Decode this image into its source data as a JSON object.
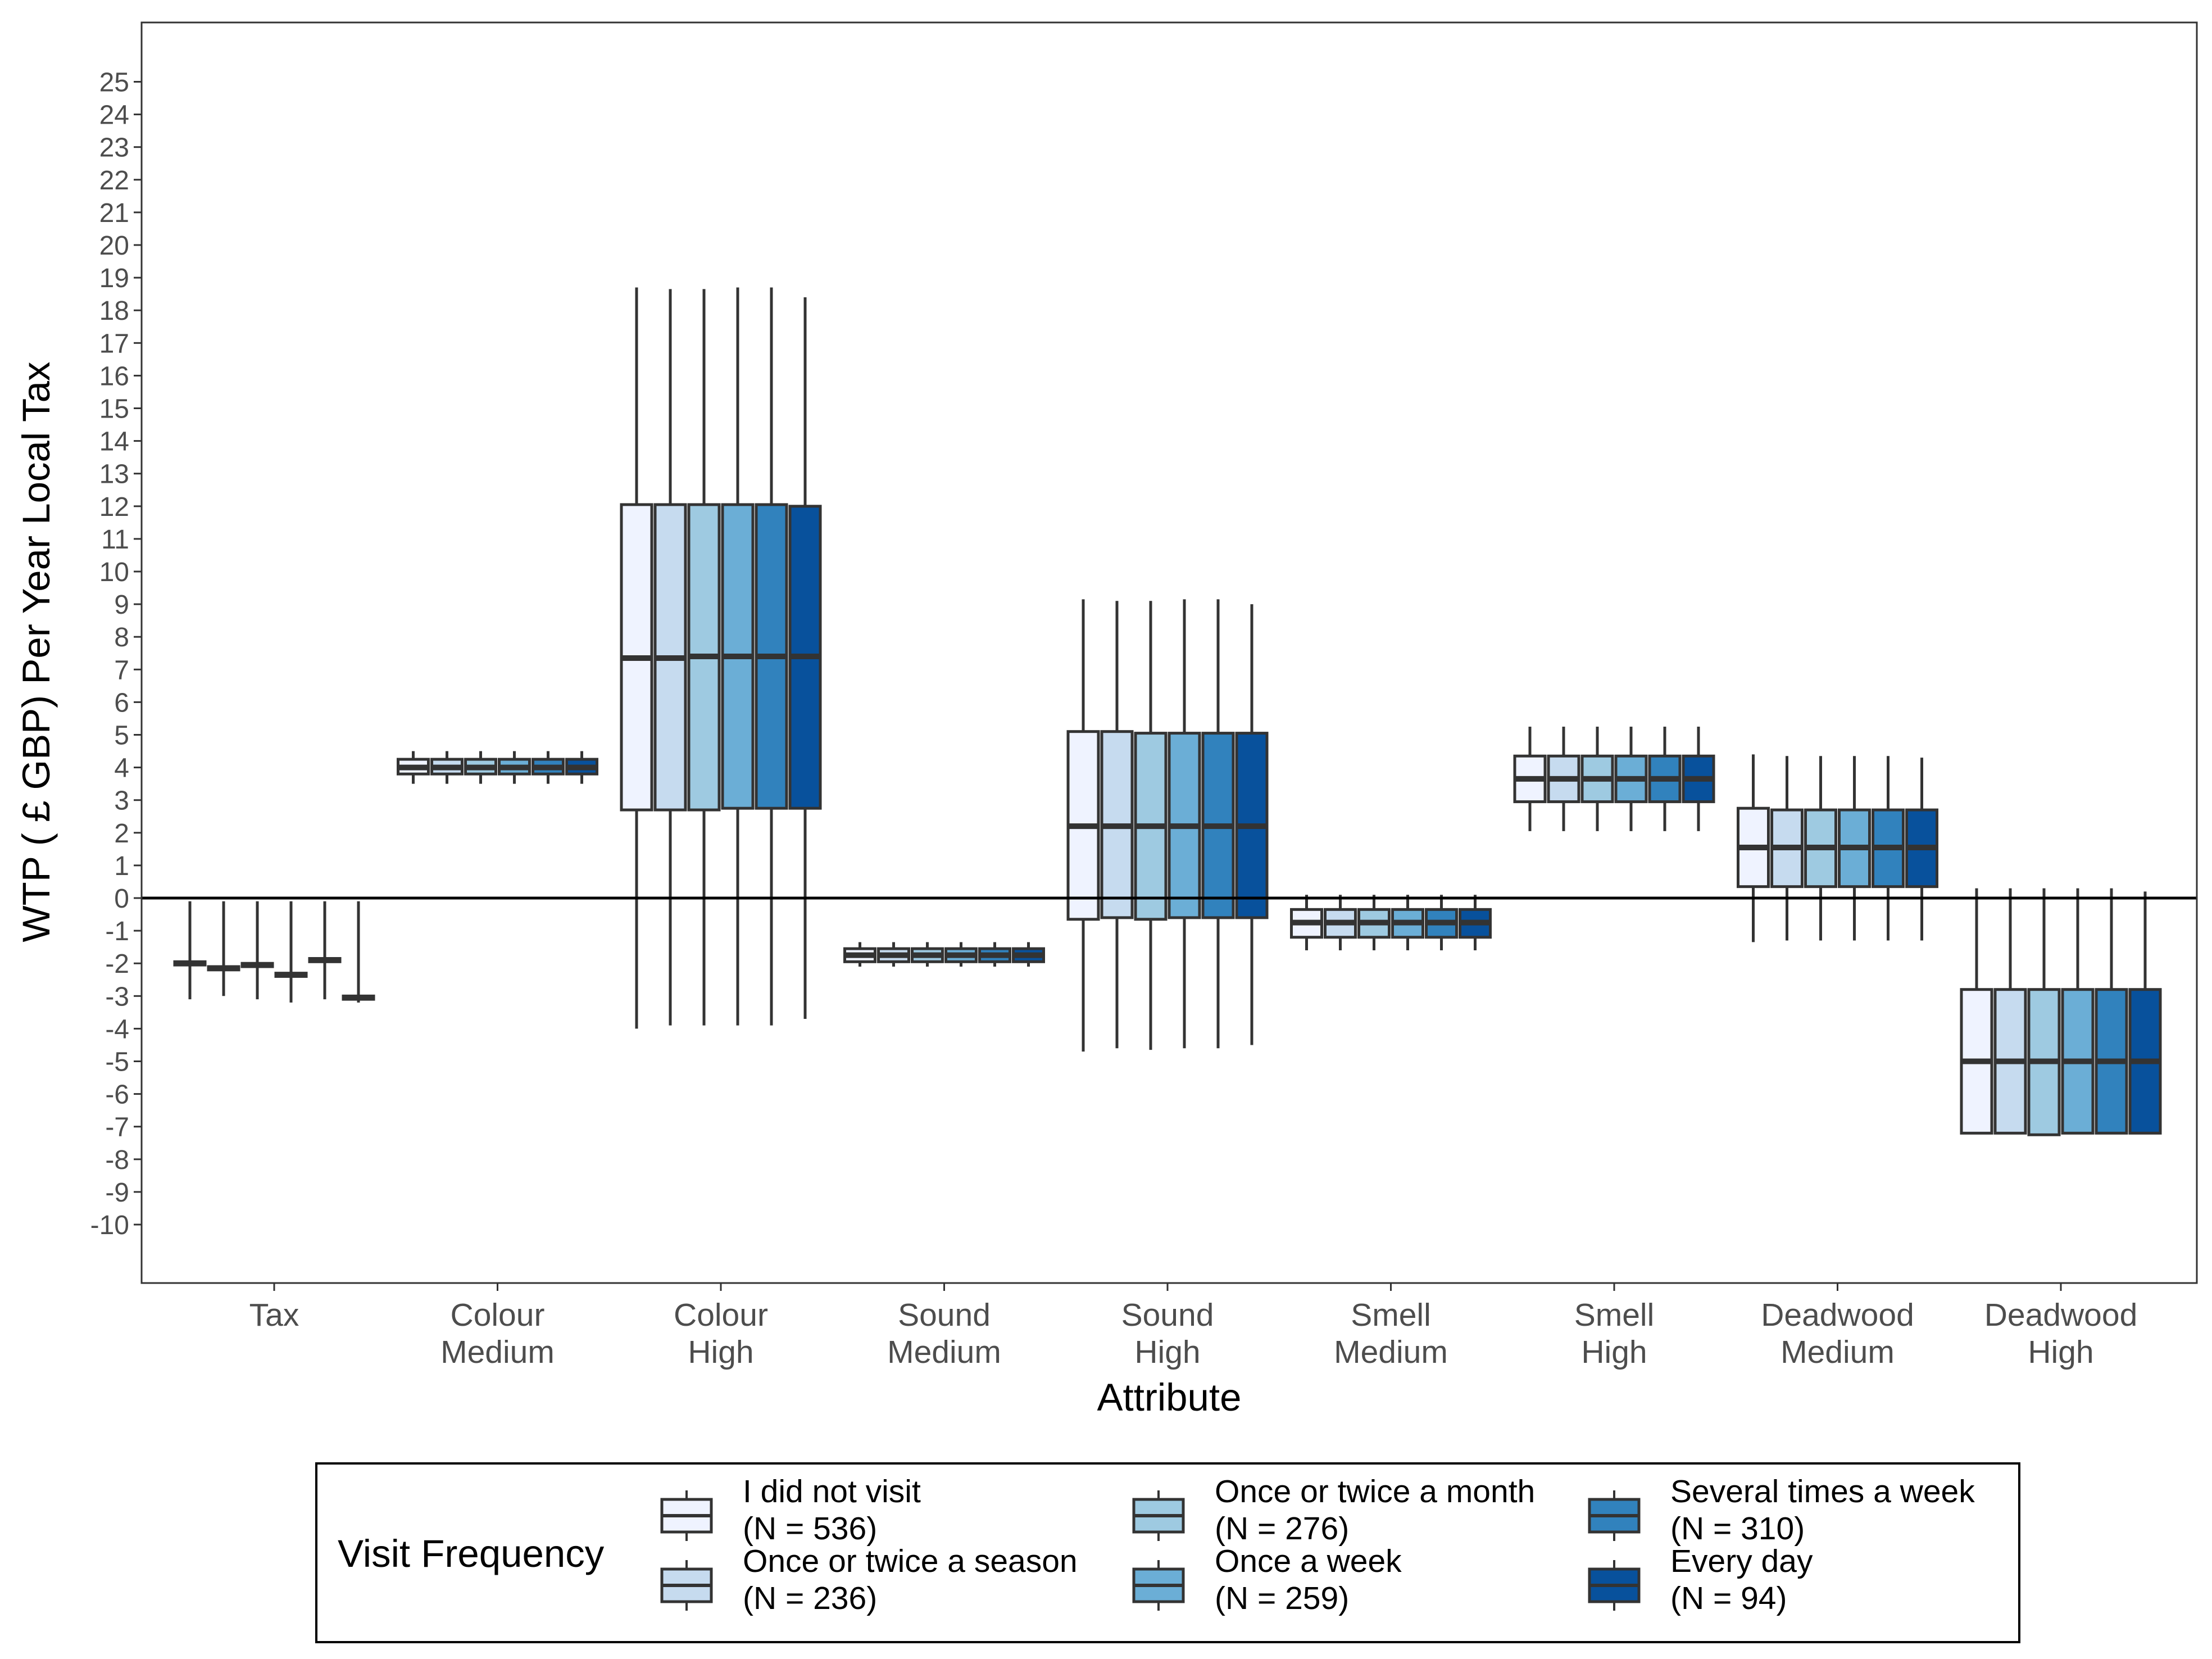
{
  "chart_data": {
    "type": "boxplot",
    "xlabel": "Attribute",
    "ylabel": "WTP ( £ GBP) Per Year Local Tax",
    "ylim": [
      -11.2,
      26.5
    ],
    "yticks": [
      -10,
      -9,
      -8,
      -7,
      -6,
      -5,
      -4,
      -3,
      -2,
      -1,
      0,
      1,
      2,
      3,
      4,
      5,
      6,
      7,
      8,
      9,
      10,
      11,
      12,
      13,
      14,
      15,
      16,
      17,
      18,
      19,
      20,
      21,
      22,
      23,
      24,
      25
    ],
    "hline": 0,
    "grid": false,
    "legend_position": "bottom",
    "legend_title": "Visit Frequency",
    "categories": [
      {
        "line1": "Tax",
        "line2": ""
      },
      {
        "line1": "Colour",
        "line2": "Medium"
      },
      {
        "line1": "Colour",
        "line2": "High"
      },
      {
        "line1": "Sound",
        "line2": "Medium"
      },
      {
        "line1": "Sound",
        "line2": "High"
      },
      {
        "line1": "Smell",
        "line2": "Medium"
      },
      {
        "line1": "Smell",
        "line2": "High"
      },
      {
        "line1": "Deadwood",
        "line2": "Medium"
      },
      {
        "line1": "Deadwood",
        "line2": "High"
      }
    ],
    "series": [
      {
        "line1": "I did not visit",
        "line2": "(N = 536)",
        "color": "#eff3ff"
      },
      {
        "line1": "Once or twice a season",
        "line2": "(N = 236)",
        "color": "#c6dbef"
      },
      {
        "line1": "Once or twice a month",
        "line2": "(N = 276)",
        "color": "#9ecae1"
      },
      {
        "line1": "Once a week",
        "line2": "(N = 259)",
        "color": "#6baed6"
      },
      {
        "line1": "Several times a week",
        "line2": "(N = 310)",
        "color": "#3182bd"
      },
      {
        "line1": "Every day",
        "line2": "(N = 94)",
        "color": "#08519c"
      }
    ],
    "boxes": [
      [
        {
          "wlo": -3.1,
          "q1": -2.05,
          "med": -2.0,
          "q3": -1.95,
          "whi": -0.1
        },
        {
          "wlo": -3.0,
          "q1": -2.2,
          "med": -2.15,
          "q3": -2.1,
          "whi": -0.1
        },
        {
          "wlo": -3.1,
          "q1": -2.1,
          "med": -2.05,
          "q3": -2.0,
          "whi": -0.1
        },
        {
          "wlo": -3.2,
          "q1": -2.4,
          "med": -2.35,
          "q3": -2.3,
          "whi": -0.1
        },
        {
          "wlo": -3.1,
          "q1": -1.95,
          "med": -1.9,
          "q3": -1.85,
          "whi": -0.1
        },
        {
          "wlo": -3.2,
          "q1": -3.1,
          "med": -3.05,
          "q3": -3.0,
          "whi": -0.1
        }
      ],
      [
        {
          "wlo": 3.5,
          "q1": 3.8,
          "med": 4.0,
          "q3": 4.25,
          "whi": 4.5
        },
        {
          "wlo": 3.5,
          "q1": 3.8,
          "med": 4.0,
          "q3": 4.25,
          "whi": 4.5
        },
        {
          "wlo": 3.5,
          "q1": 3.8,
          "med": 4.0,
          "q3": 4.25,
          "whi": 4.5
        },
        {
          "wlo": 3.5,
          "q1": 3.8,
          "med": 4.0,
          "q3": 4.25,
          "whi": 4.5
        },
        {
          "wlo": 3.5,
          "q1": 3.8,
          "med": 4.0,
          "q3": 4.25,
          "whi": 4.5
        },
        {
          "wlo": 3.5,
          "q1": 3.8,
          "med": 4.0,
          "q3": 4.25,
          "whi": 4.5
        }
      ],
      [
        {
          "wlo": -4.0,
          "q1": 2.7,
          "med": 7.35,
          "q3": 12.05,
          "whi": 18.7
        },
        {
          "wlo": -3.9,
          "q1": 2.7,
          "med": 7.35,
          "q3": 12.05,
          "whi": 18.65
        },
        {
          "wlo": -3.9,
          "q1": 2.7,
          "med": 7.4,
          "q3": 12.05,
          "whi": 18.65
        },
        {
          "wlo": -3.9,
          "q1": 2.75,
          "med": 7.4,
          "q3": 12.05,
          "whi": 18.7
        },
        {
          "wlo": -3.9,
          "q1": 2.75,
          "med": 7.4,
          "q3": 12.05,
          "whi": 18.7
        },
        {
          "wlo": -3.7,
          "q1": 2.75,
          "med": 7.4,
          "q3": 12.0,
          "whi": 18.4
        }
      ],
      [
        {
          "wlo": -2.1,
          "q1": -1.95,
          "med": -1.75,
          "q3": -1.55,
          "whi": -1.35
        },
        {
          "wlo": -2.1,
          "q1": -1.95,
          "med": -1.75,
          "q3": -1.55,
          "whi": -1.35
        },
        {
          "wlo": -2.1,
          "q1": -1.95,
          "med": -1.75,
          "q3": -1.55,
          "whi": -1.35
        },
        {
          "wlo": -2.1,
          "q1": -1.95,
          "med": -1.75,
          "q3": -1.55,
          "whi": -1.35
        },
        {
          "wlo": -2.1,
          "q1": -1.95,
          "med": -1.75,
          "q3": -1.55,
          "whi": -1.35
        },
        {
          "wlo": -2.1,
          "q1": -1.95,
          "med": -1.75,
          "q3": -1.55,
          "whi": -1.35
        }
      ],
      [
        {
          "wlo": -4.7,
          "q1": -0.65,
          "med": 2.2,
          "q3": 5.1,
          "whi": 9.15
        },
        {
          "wlo": -4.6,
          "q1": -0.6,
          "med": 2.2,
          "q3": 5.1,
          "whi": 9.1
        },
        {
          "wlo": -4.65,
          "q1": -0.65,
          "med": 2.2,
          "q3": 5.05,
          "whi": 9.1
        },
        {
          "wlo": -4.6,
          "q1": -0.6,
          "med": 2.2,
          "q3": 5.05,
          "whi": 9.15
        },
        {
          "wlo": -4.6,
          "q1": -0.6,
          "med": 2.2,
          "q3": 5.05,
          "whi": 9.15
        },
        {
          "wlo": -4.5,
          "q1": -0.6,
          "med": 2.2,
          "q3": 5.05,
          "whi": 9.0
        }
      ],
      [
        {
          "wlo": -1.6,
          "q1": -1.2,
          "med": -0.75,
          "q3": -0.35,
          "whi": 0.1
        },
        {
          "wlo": -1.6,
          "q1": -1.2,
          "med": -0.75,
          "q3": -0.35,
          "whi": 0.1
        },
        {
          "wlo": -1.6,
          "q1": -1.2,
          "med": -0.75,
          "q3": -0.35,
          "whi": 0.1
        },
        {
          "wlo": -1.6,
          "q1": -1.2,
          "med": -0.75,
          "q3": -0.35,
          "whi": 0.1
        },
        {
          "wlo": -1.6,
          "q1": -1.2,
          "med": -0.75,
          "q3": -0.35,
          "whi": 0.1
        },
        {
          "wlo": -1.6,
          "q1": -1.2,
          "med": -0.75,
          "q3": -0.35,
          "whi": 0.1
        }
      ],
      [
        {
          "wlo": 2.05,
          "q1": 2.95,
          "med": 3.65,
          "q3": 4.35,
          "whi": 5.25
        },
        {
          "wlo": 2.05,
          "q1": 2.95,
          "med": 3.65,
          "q3": 4.35,
          "whi": 5.25
        },
        {
          "wlo": 2.05,
          "q1": 2.95,
          "med": 3.65,
          "q3": 4.35,
          "whi": 5.25
        },
        {
          "wlo": 2.05,
          "q1": 2.95,
          "med": 3.65,
          "q3": 4.35,
          "whi": 5.25
        },
        {
          "wlo": 2.05,
          "q1": 2.95,
          "med": 3.65,
          "q3": 4.35,
          "whi": 5.25
        },
        {
          "wlo": 2.05,
          "q1": 2.95,
          "med": 3.65,
          "q3": 4.35,
          "whi": 5.25
        }
      ],
      [
        {
          "wlo": -1.35,
          "q1": 0.35,
          "med": 1.55,
          "q3": 2.75,
          "whi": 4.4
        },
        {
          "wlo": -1.3,
          "q1": 0.35,
          "med": 1.55,
          "q3": 2.7,
          "whi": 4.35
        },
        {
          "wlo": -1.3,
          "q1": 0.35,
          "med": 1.55,
          "q3": 2.7,
          "whi": 4.35
        },
        {
          "wlo": -1.3,
          "q1": 0.35,
          "med": 1.55,
          "q3": 2.7,
          "whi": 4.35
        },
        {
          "wlo": -1.3,
          "q1": 0.35,
          "med": 1.55,
          "q3": 2.7,
          "whi": 4.35
        },
        {
          "wlo": -1.3,
          "q1": 0.35,
          "med": 1.55,
          "q3": 2.7,
          "whi": 4.3
        }
      ],
      [
        {
          "wlo": -7.2,
          "q1": -7.2,
          "med": -5.0,
          "q3": -2.8,
          "whi": 0.3
        },
        {
          "wlo": -7.2,
          "q1": -7.2,
          "med": -5.0,
          "q3": -2.8,
          "whi": 0.3
        },
        {
          "wlo": -7.25,
          "q1": -7.25,
          "med": -5.0,
          "q3": -2.8,
          "whi": 0.3
        },
        {
          "wlo": -7.2,
          "q1": -7.2,
          "med": -5.0,
          "q3": -2.8,
          "whi": 0.3
        },
        {
          "wlo": -7.2,
          "q1": -7.2,
          "med": -5.0,
          "q3": -2.8,
          "whi": 0.3
        },
        {
          "wlo": -7.2,
          "q1": -7.2,
          "med": -5.0,
          "q3": -2.8,
          "whi": 0.2
        }
      ]
    ]
  }
}
